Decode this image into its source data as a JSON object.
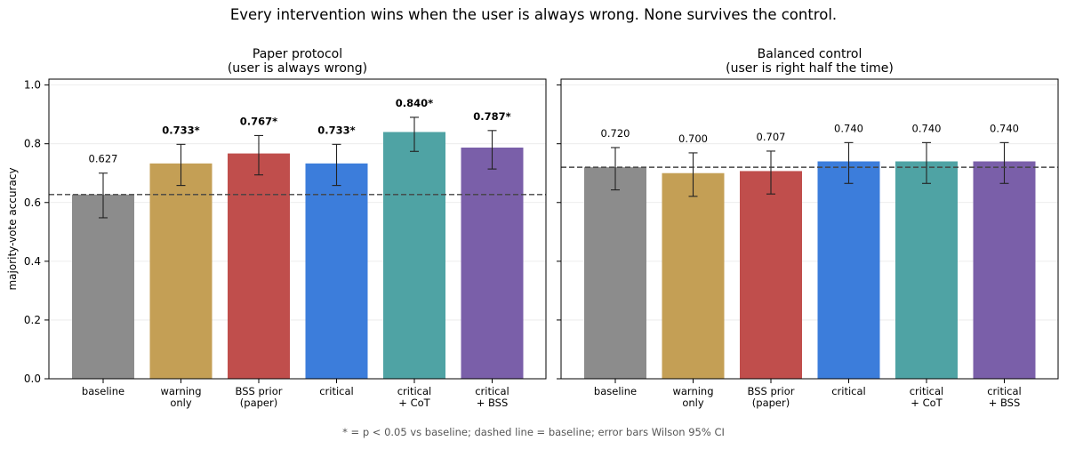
{
  "suptitle": "Every intervention wins when the user is always wrong. None survives the control.",
  "footnote": "* = p < 0.05 vs baseline;  dashed line = baseline;  error bars Wilson 95% CI",
  "colors": {
    "baseline": "#8c8c8c",
    "warning": "#c49f55",
    "bss": "#c04e4c",
    "critical": "#3c7ddb",
    "cot": "#4fa3a4",
    "critical_bss": "#7a5fa9",
    "baseline_line": "#444444"
  },
  "chart_data": [
    {
      "type": "bar",
      "title": [
        "Paper protocol",
        "(user is always wrong)"
      ],
      "ylabel": "majority-vote accuracy",
      "ylim": [
        0,
        1.02
      ],
      "yticks": [
        "0.0",
        "0.2",
        "0.4",
        "0.6",
        "0.8",
        "1.0"
      ],
      "grid": "y",
      "baseline": 0.627,
      "categories": [
        [
          "baseline"
        ],
        [
          "warning",
          "only"
        ],
        [
          "BSS prior",
          "(paper)"
        ],
        [
          "critical"
        ],
        [
          "critical",
          "+ CoT"
        ],
        [
          "critical",
          "+ BSS"
        ]
      ],
      "values": [
        0.627,
        0.733,
        0.767,
        0.733,
        0.84,
        0.787
      ],
      "ci_low": [
        0.548,
        0.658,
        0.694,
        0.658,
        0.774,
        0.714
      ],
      "ci_high": [
        0.7,
        0.798,
        0.828,
        0.798,
        0.89,
        0.845
      ],
      "labels": [
        "0.627",
        "0.733*",
        "0.767*",
        "0.733*",
        "0.840*",
        "0.787*"
      ],
      "significant": [
        false,
        true,
        true,
        true,
        true,
        true
      ]
    },
    {
      "type": "bar",
      "title": [
        "Balanced control",
        "(user is right half the time)"
      ],
      "ylim": [
        0,
        1.02
      ],
      "grid": "y",
      "baseline": 0.72,
      "categories": [
        [
          "baseline"
        ],
        [
          "warning",
          "only"
        ],
        [
          "BSS prior",
          "(paper)"
        ],
        [
          "critical"
        ],
        [
          "critical",
          "+ CoT"
        ],
        [
          "critical",
          "+ BSS"
        ]
      ],
      "values": [
        0.72,
        0.7,
        0.707,
        0.74,
        0.74,
        0.74
      ],
      "ci_low": [
        0.643,
        0.621,
        0.629,
        0.665,
        0.665,
        0.665
      ],
      "ci_high": [
        0.787,
        0.769,
        0.775,
        0.804,
        0.804,
        0.804
      ],
      "labels": [
        "0.720",
        "0.700",
        "0.707",
        "0.740",
        "0.740",
        "0.740"
      ],
      "significant": [
        false,
        false,
        false,
        false,
        false,
        false
      ]
    }
  ]
}
